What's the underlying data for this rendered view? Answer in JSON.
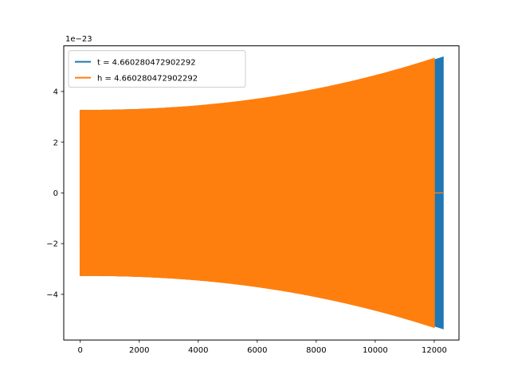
{
  "chart_data": {
    "type": "line",
    "title": "",
    "xlabel": "",
    "ylabel": "",
    "y_offset_label": "1e−23",
    "xlim": [
      -560,
      12840
    ],
    "ylim": [
      -5.8,
      5.8
    ],
    "x_ticks": [
      0,
      2000,
      4000,
      6000,
      8000,
      10000,
      12000
    ],
    "x_tick_labels": [
      "0",
      "2000",
      "4000",
      "6000",
      "8000",
      "10000",
      "12000"
    ],
    "y_ticks": [
      -4,
      -2,
      0,
      2,
      4
    ],
    "y_tick_labels": [
      "−4",
      "−2",
      "0",
      "2",
      "4"
    ],
    "grid": false,
    "legend_position": "top-left",
    "series": [
      {
        "name": "t = 4.660280472902292",
        "color": "#1f77b4",
        "kind": "chirp-envelope",
        "x_start": 0,
        "x_end": 12300,
        "amplitude_start": 3.25,
        "amplitude_end": 5.35
      },
      {
        "name": "h = 4.660280472902292",
        "color": "#ff7f0e",
        "kind": "chirp-envelope",
        "x_start": 0,
        "x_end": 12000,
        "amplitude_start": 3.25,
        "amplitude_end": 5.3,
        "tail_end": 12300
      }
    ]
  }
}
